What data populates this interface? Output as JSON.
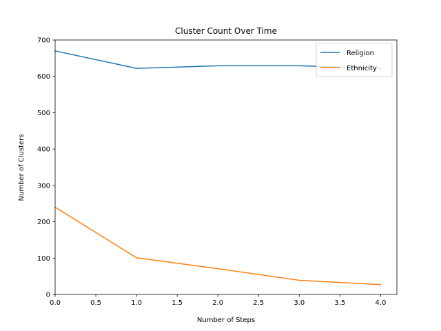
{
  "chart_data": {
    "type": "line",
    "title": "Cluster Count Over Time",
    "xlabel": "Number of Steps",
    "ylabel": "Number of Clusters",
    "x": [
      0,
      1,
      2,
      3,
      4
    ],
    "xlim": [
      0,
      4.2
    ],
    "ylim": [
      0,
      700
    ],
    "xticks": [
      "0.0",
      "0.5",
      "1.0",
      "1.5",
      "2.0",
      "2.5",
      "3.0",
      "3.5",
      "4.0"
    ],
    "yticks": [
      "0",
      "100",
      "200",
      "300",
      "400",
      "500",
      "600",
      "700"
    ],
    "grid": false,
    "legend_position": "top-right",
    "series": [
      {
        "name": "Religion",
        "color": "#1f77b4",
        "values": [
          670,
          622,
          629,
          629,
          622
        ]
      },
      {
        "name": "Ethnicity",
        "color": "#ff7f0e",
        "values": [
          240,
          101,
          71,
          39,
          27
        ]
      }
    ]
  }
}
